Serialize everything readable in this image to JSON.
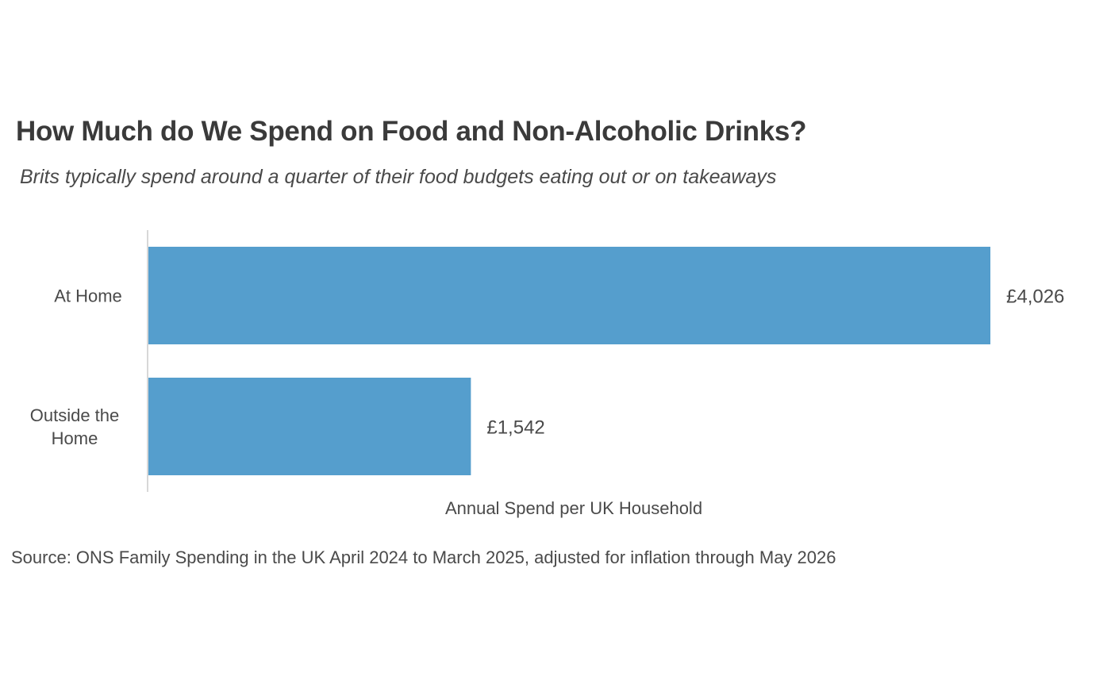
{
  "header": {
    "title": "How Much do We Spend on Food and Non-Alcoholic Drinks?",
    "subtitle": "Brits typically spend around a quarter of their food budgets eating out or on takeaways"
  },
  "footer": {
    "source": "Source: ONS Family Spending in the UK April 2024 to March 2025, adjusted for inflation through May 2026"
  },
  "colors": {
    "bar": "#559ecd",
    "axis": "#cccccc",
    "text": "#4a4a4a"
  },
  "chart_data": {
    "type": "bar",
    "orientation": "horizontal",
    "title": "How Much do We Spend on Food and Non-Alcoholic Drinks?",
    "subtitle": "Brits typically spend around a quarter of their food budgets eating out or on takeaways",
    "xlabel": "Annual Spend per UK Household",
    "ylabel": "",
    "categories": [
      [
        "At Home"
      ],
      [
        "Outside the",
        "Home"
      ]
    ],
    "values": [
      4026,
      1542
    ],
    "value_labels": [
      "£4,026",
      "£1,542"
    ],
    "xlim": [
      0,
      4026
    ],
    "grid": false,
    "legend": "none"
  }
}
